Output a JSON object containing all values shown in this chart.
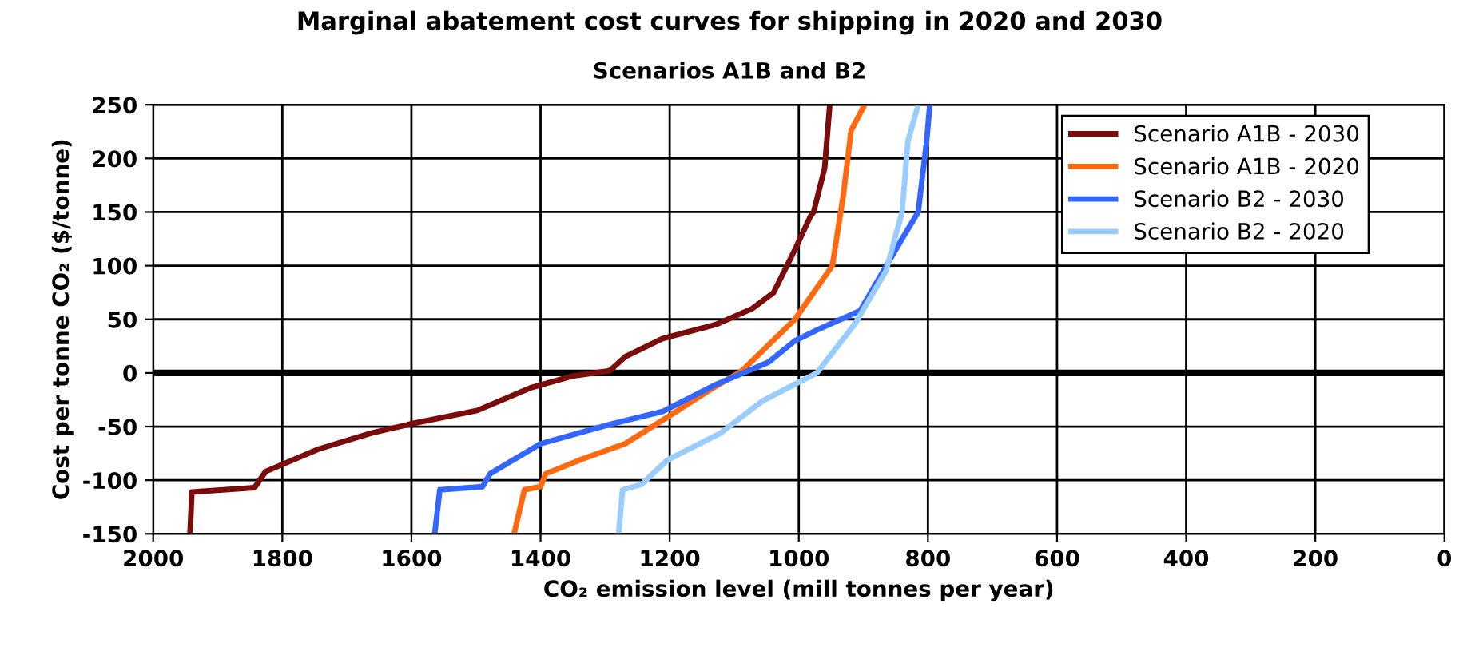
{
  "chart_data": {
    "type": "line",
    "title": "Marginal abatement cost curves for shipping in 2020 and 2030",
    "subtitle": "Scenarios A1B and B2",
    "xlabel": "CO₂ emission level (mill tonnes per year)",
    "ylabel": "Cost per tonne CO₂ ($/tonne)",
    "xlim": [
      2000,
      0
    ],
    "xticks": [
      2000,
      1800,
      1600,
      1400,
      1200,
      1000,
      800,
      600,
      400,
      200,
      0
    ],
    "ylim": [
      -150,
      250
    ],
    "yticks": [
      -150,
      -100,
      -50,
      0,
      50,
      100,
      150,
      200,
      250
    ],
    "grid": true,
    "legend": "top right",
    "line_style": "solid",
    "marker": "none",
    "ref_lines": [
      {
        "axis": "y",
        "value": 0,
        "color": "#000000"
      }
    ],
    "series": [
      {
        "name": "Scenario A1B - 2030",
        "color": "#7b0c0c",
        "x": [
          1943,
          1940,
          1843,
          1826,
          1744,
          1662,
          1597,
          1498,
          1416,
          1351,
          1293,
          1269,
          1211,
          1129,
          1072,
          1039,
          1006,
          982,
          977,
          960,
          952
        ],
        "values": [
          -150,
          -111,
          -107,
          -92,
          -71,
          -56,
          -47,
          -35,
          -14,
          -3,
          2,
          15,
          32,
          45,
          60,
          75,
          115,
          146,
          150,
          191,
          250
        ]
      },
      {
        "name": "Scenario A1B - 2020",
        "color": "#ff6a10",
        "x": [
          1441,
          1425,
          1400,
          1392,
          1334,
          1269,
          1203,
          1138,
          1088,
          1006,
          948,
          931,
          919,
          898
        ],
        "values": [
          -150,
          -109,
          -106,
          -94,
          -80,
          -66,
          -41,
          -16,
          2,
          50,
          100,
          166,
          226,
          250
        ]
      },
      {
        "name": "Scenario B2 - 2030",
        "color": "#3366ff",
        "x": [
          1564,
          1556,
          1490,
          1478,
          1400,
          1293,
          1211,
          1129,
          1047,
          1006,
          972,
          905,
          840,
          815,
          802,
          797
        ],
        "values": [
          -150,
          -109,
          -106,
          -94,
          -66,
          -48,
          -36,
          -11,
          10,
          30,
          40,
          58,
          125,
          150,
          216,
          250
        ]
      },
      {
        "name": "Scenario B2 - 2020",
        "color": "#99ccff",
        "x": [
          1279,
          1273,
          1244,
          1203,
          1121,
          1056,
          972,
          914,
          865,
          840,
          831,
          815
        ],
        "values": [
          -150,
          -109,
          -104,
          -81,
          -56,
          -26,
          0,
          45,
          95,
          150,
          216,
          250
        ]
      }
    ]
  }
}
